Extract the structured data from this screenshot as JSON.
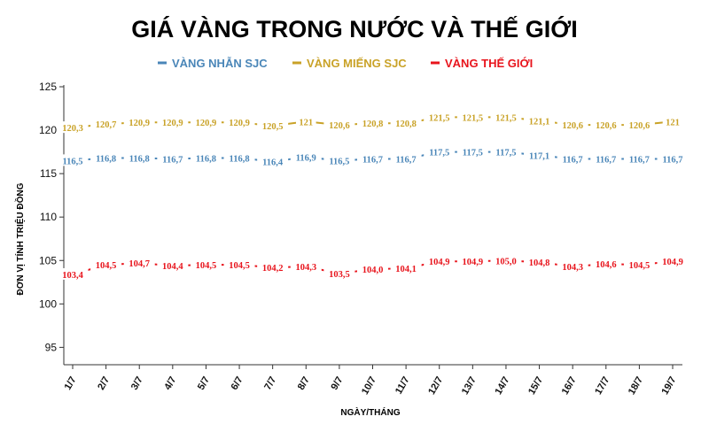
{
  "chart_data": {
    "type": "line",
    "title": "GIÁ VÀNG TRONG NƯỚC VÀ THẾ GIỚI",
    "xlabel": "NGÀY/THÁNG",
    "ylabel": "ĐƠN VỊ TÍNH TRIỆU ĐỒNG",
    "ylim": [
      93,
      125
    ],
    "yticks": [
      95,
      100,
      105,
      110,
      115,
      120,
      125
    ],
    "grid": false,
    "legend_position": "top-center",
    "categories": [
      "1/7",
      "2/7",
      "3/7",
      "4/7",
      "5/7",
      "6/7",
      "7/7",
      "8/7",
      "9/7",
      "10/7",
      "11/7",
      "12/7",
      "13/7",
      "14/7",
      "15/7",
      "16/7",
      "17/7",
      "18/7",
      "19/7"
    ],
    "series": [
      {
        "name": "VÀNG NHẪN SJC",
        "color": "#4a86b8",
        "values": [
          116.5,
          116.8,
          116.8,
          116.7,
          116.8,
          116.8,
          116.4,
          116.9,
          116.5,
          116.7,
          116.7,
          117.5,
          117.5,
          117.5,
          117.1,
          116.7,
          116.7,
          116.7,
          116.7
        ],
        "labels": [
          "116,5",
          "116,8",
          "116,8",
          "116,7",
          "116,8",
          "116,8",
          "116,4",
          "116,9",
          "116,5",
          "116,7",
          "116,7",
          "117,5",
          "117,5",
          "117,5",
          "117,1",
          "116,7",
          "116,7",
          "116,7",
          "116,7"
        ]
      },
      {
        "name": "VÀNG MIẾNG SJC",
        "color": "#c9a227",
        "values": [
          120.3,
          120.7,
          120.9,
          120.9,
          120.9,
          120.9,
          120.5,
          121,
          120.6,
          120.8,
          120.8,
          121.5,
          121.5,
          121.5,
          121.1,
          120.6,
          120.6,
          120.6,
          121
        ],
        "labels": [
          "120,3",
          "120,7",
          "120,9",
          "120,9",
          "120,9",
          "120,9",
          "120,5",
          "121",
          "120,6",
          "120,8",
          "120,8",
          "121,5",
          "121,5",
          "121,5",
          "121,1",
          "120,6",
          "120,6",
          "120,6",
          "121"
        ]
      },
      {
        "name": "VÀNG THẾ GIỚI",
        "color": "#e8141c",
        "values": [
          103.4,
          104.5,
          104.7,
          104.4,
          104.5,
          104.5,
          104.2,
          104.3,
          103.5,
          104.0,
          104.1,
          104.9,
          104.9,
          105.0,
          104.8,
          104.3,
          104.6,
          104.5,
          104.9
        ],
        "labels": [
          "103,4",
          "104,5",
          "104,7",
          "104,4",
          "104,5",
          "104,5",
          "104,2",
          "104,3",
          "103,5",
          "104,0",
          "104,1",
          "104,9",
          "104,9",
          "105,0",
          "104,8",
          "104,3",
          "104,6",
          "104,5",
          "104,9"
        ]
      }
    ]
  }
}
